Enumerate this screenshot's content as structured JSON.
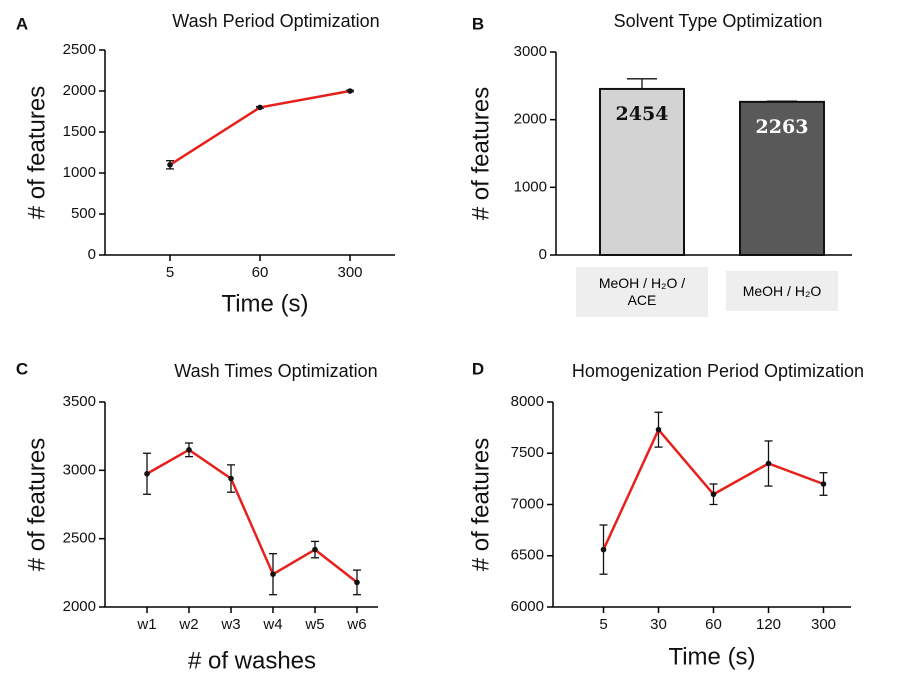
{
  "chart_data": [
    {
      "type": "line",
      "panel": "A",
      "title": "Wash Period Optimization",
      "xlabel": "Time (s)",
      "ylabel": "# of features",
      "categories": [
        "5",
        "60",
        "300"
      ],
      "values": [
        1100,
        1800,
        2000
      ],
      "errors": [
        50,
        10,
        10
      ],
      "color": "#e8201c",
      "ylim": [
        0,
        2500
      ],
      "yticks": [
        0,
        500,
        1000,
        1500,
        2000,
        2500
      ]
    },
    {
      "type": "bar",
      "panel": "B",
      "title": "Solvent Type Optimization",
      "ylabel": "# of features",
      "categories": [
        "MeOH / H₂O / ACE",
        "MeOH / H₂O"
      ],
      "values": [
        2454,
        2263
      ],
      "errors": [
        150,
        10
      ],
      "colors": [
        "#d3d3d3",
        "#595959"
      ],
      "ylim": [
        0,
        3000
      ],
      "yticks": [
        0,
        1000,
        2000,
        3000
      ]
    },
    {
      "type": "line",
      "panel": "C",
      "title": "Wash Times Optimization",
      "xlabel": "# of washes",
      "ylabel": "# of features",
      "categories": [
        "w1",
        "w2",
        "w3",
        "w4",
        "w5",
        "w6"
      ],
      "values": [
        2975,
        3150,
        2940,
        2240,
        2420,
        2180
      ],
      "errors": [
        150,
        50,
        100,
        150,
        60,
        90
      ],
      "color": "#e8201c",
      "ylim": [
        2000,
        3500
      ],
      "yticks": [
        2000,
        2500,
        3000,
        3500
      ]
    },
    {
      "type": "line",
      "panel": "D",
      "title": "Homogenization Period Optimization",
      "xlabel": "Time (s)",
      "ylabel": "# of features",
      "categories": [
        "5",
        "30",
        "60",
        "120",
        "300"
      ],
      "values": [
        6560,
        7730,
        7100,
        7400,
        7200
      ],
      "errors": [
        240,
        170,
        100,
        220,
        110
      ],
      "color": "#e8201c",
      "ylim": [
        6000,
        8000
      ],
      "yticks": [
        6000,
        6500,
        7000,
        7500,
        8000
      ]
    }
  ]
}
